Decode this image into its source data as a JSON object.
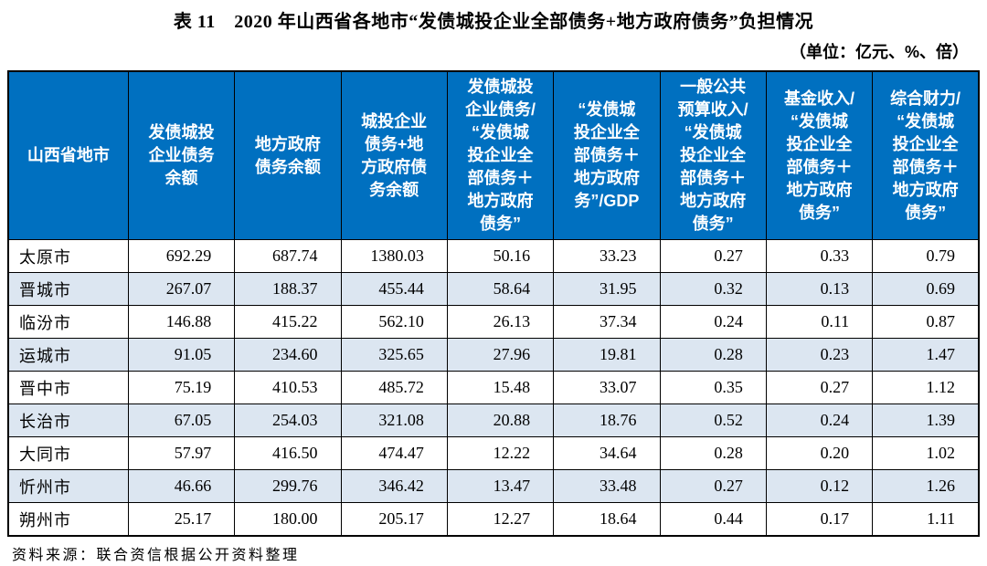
{
  "title": "表 11　2020 年山西省各地市“发债城投企业全部债务+地方政府债务”负担情况",
  "unit_note": "（单位：亿元、%、倍）",
  "source_note": "资料来源：联合资信根据公开资料整理",
  "colors": {
    "header_bg": "#0070C0",
    "header_text": "#FFFFFF",
    "stripe_bg": "#DCE6F1",
    "border": "#000000"
  },
  "table": {
    "columns": [
      "山西省地市",
      "发债城投\n企业债务\n余额",
      "地方政府\n债务余额",
      "城投企业\n债务+地\n方政府债\n务余额",
      "发债城投\n企业债务/\n“发债城\n投企业全\n部债务＋\n地方政府\n债务”",
      "“发债城\n投企业全\n部债务＋\n地方政府\n务”/GDP",
      "一般公共\n预算收入/\n“发债城\n投企业全\n部债务＋\n地方政府\n债务”",
      "基金收入/\n“发债城\n投企业全\n部债务＋\n地方政府\n债务”",
      "综合财力/\n“发债城\n投企业全\n部债务＋\n地方政府\n债务”"
    ],
    "rows": [
      [
        "太原市",
        "692.29",
        "687.74",
        "1380.03",
        "50.16",
        "33.23",
        "0.27",
        "0.33",
        "0.79"
      ],
      [
        "晋城市",
        "267.07",
        "188.37",
        "455.44",
        "58.64",
        "31.95",
        "0.32",
        "0.13",
        "0.69"
      ],
      [
        "临汾市",
        "146.88",
        "415.22",
        "562.10",
        "26.13",
        "37.34",
        "0.24",
        "0.11",
        "0.87"
      ],
      [
        "运城市",
        "91.05",
        "234.60",
        "325.65",
        "27.96",
        "19.81",
        "0.28",
        "0.23",
        "1.47"
      ],
      [
        "晋中市",
        "75.19",
        "410.53",
        "485.72",
        "15.48",
        "33.07",
        "0.35",
        "0.27",
        "1.12"
      ],
      [
        "长治市",
        "67.05",
        "254.03",
        "321.08",
        "20.88",
        "18.76",
        "0.52",
        "0.24",
        "1.39"
      ],
      [
        "大同市",
        "57.97",
        "416.50",
        "474.47",
        "12.22",
        "34.64",
        "0.28",
        "0.20",
        "1.02"
      ],
      [
        "忻州市",
        "46.66",
        "299.76",
        "346.42",
        "13.47",
        "33.48",
        "0.27",
        "0.12",
        "1.26"
      ],
      [
        "朔州市",
        "25.17",
        "180.00",
        "205.17",
        "12.27",
        "18.64",
        "0.44",
        "0.17",
        "1.11"
      ]
    ]
  }
}
